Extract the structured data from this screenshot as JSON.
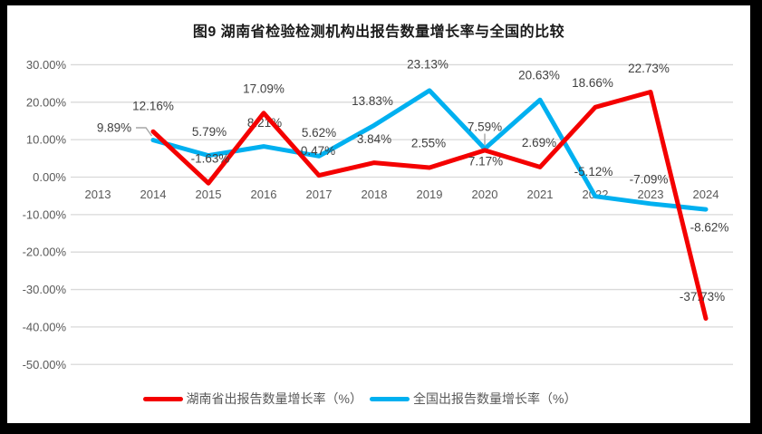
{
  "title": "图9 湖南省检验检测机构出报告数量增长率与全国的比较",
  "colors": {
    "hunan": "#F40000",
    "national": "#00B0F0",
    "gridline": "#D9D9D9",
    "axis_text": "#595959",
    "data_label_text": "#404040",
    "leader_line": "#A6A6A6",
    "frame": "#000000",
    "background": "#FFFFFF"
  },
  "legend": [
    {
      "label": "湖南省出报告数量增长率（%）",
      "series": "hunan"
    },
    {
      "label": "全国出报告数量增长率（%）",
      "series": "national"
    }
  ],
  "chart_data": {
    "type": "line",
    "title": "图9 湖南省检验检测机构出报告数量增长率与全国的比较",
    "categories": [
      "2013",
      "2014",
      "2015",
      "2016",
      "2017",
      "2018",
      "2019",
      "2020",
      "2021",
      "2022",
      "2023",
      "2024"
    ],
    "series": [
      {
        "name": "湖南省出报告数量增长率（%）",
        "color_key": "hunan",
        "values": [
          null,
          12.16,
          -1.63,
          17.09,
          0.47,
          3.84,
          2.55,
          7.17,
          2.69,
          18.66,
          22.73,
          -37.73
        ]
      },
      {
        "name": "全国出报告数量增长率（%）",
        "color_key": "national",
        "values": [
          null,
          9.89,
          5.79,
          8.21,
          5.62,
          13.83,
          23.13,
          7.59,
          20.63,
          -5.12,
          -7.09,
          -8.62
        ]
      }
    ],
    "data_labels": true,
    "grid": true,
    "legend_position": "bottom",
    "y_axis": {
      "min": -50,
      "max": 30,
      "step": 10,
      "tick_labels": [
        "30.00%",
        "20.00%",
        "10.00%",
        "0.00%",
        "-10.00%",
        "-20.00%",
        "-30.00%",
        "-40.00%",
        "-50.00%"
      ]
    }
  }
}
